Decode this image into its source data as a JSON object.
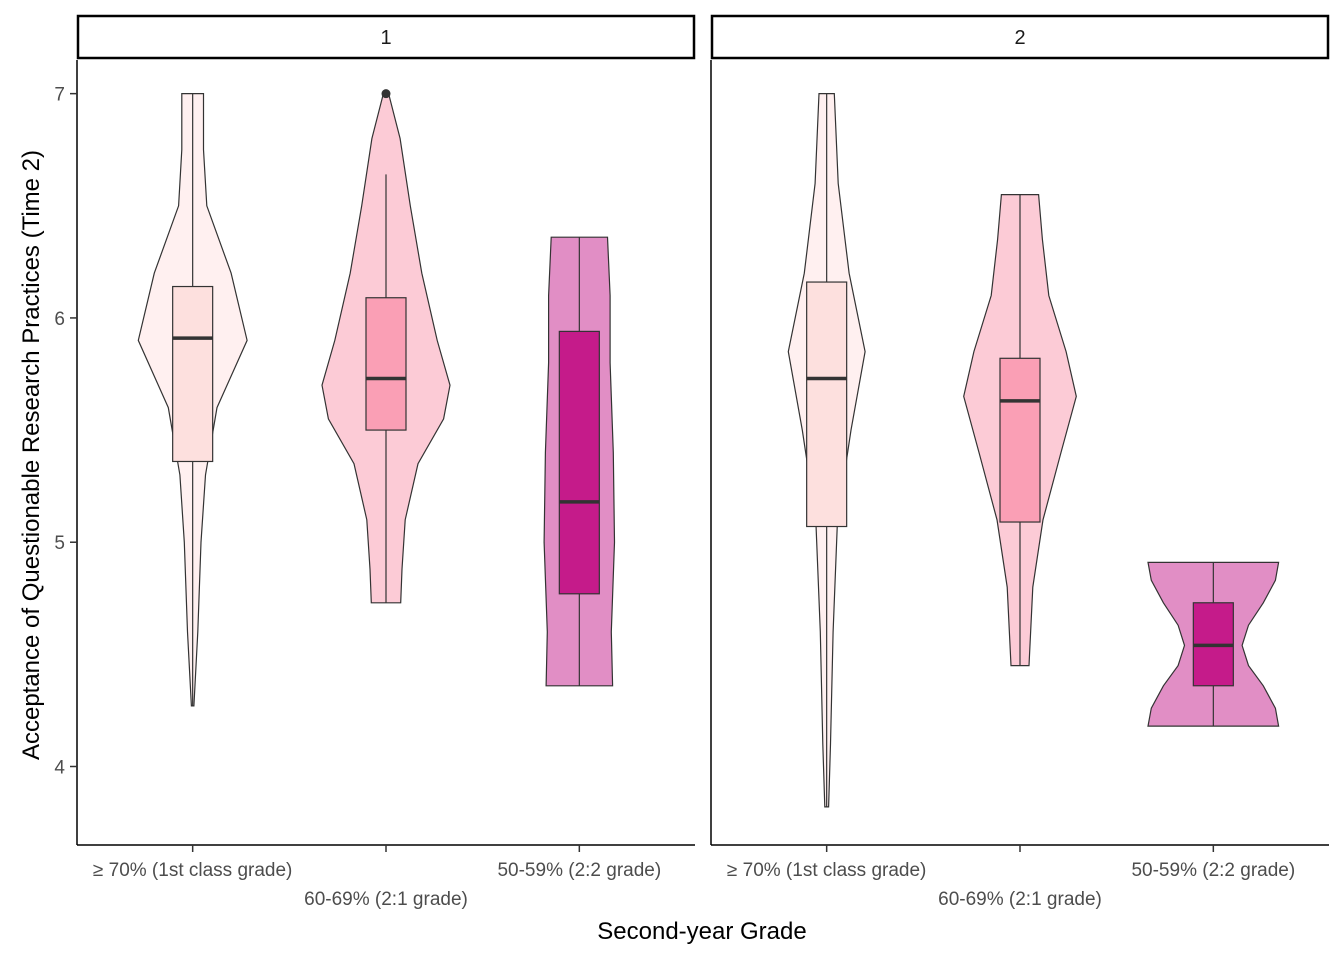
{
  "chart_data": {
    "type": "violin",
    "xlabel": "Second-year Grade",
    "ylabel": "Acceptance of Questionable Research Practices (Time 2)",
    "ylim": [
      3.65,
      7.15
    ],
    "y_ticks": [
      "4",
      "5",
      "6",
      "7"
    ],
    "categories": [
      "≥ 70% (1st class grade)",
      "60-69% (2:1 grade)",
      "50-59% (2:2 grade)"
    ],
    "category_colors": {
      "violin": [
        "#fff0f0",
        "#fccbd6",
        "#e18ec5"
      ],
      "box": [
        "#fde0de",
        "#fa9fb5",
        "#c51b8a"
      ]
    },
    "grid": false,
    "legend": "none",
    "panels": [
      {
        "label": "1",
        "groups": [
          {
            "category": "≥ 70% (1st class grade)",
            "box": {
              "lower_whisker": 4.27,
              "q1": 5.36,
              "median": 5.91,
              "q3": 6.14,
              "upper_whisker": 7.0
            },
            "outliers": [],
            "violin_profile": [
              [
                4.27,
                0.02
              ],
              [
                4.6,
                0.08
              ],
              [
                5.0,
                0.13
              ],
              [
                5.3,
                0.2
              ],
              [
                5.6,
                0.38
              ],
              [
                5.9,
                0.85
              ],
              [
                6.2,
                0.6
              ],
              [
                6.5,
                0.22
              ],
              [
                6.75,
                0.17
              ],
              [
                7.0,
                0.17
              ]
            ]
          },
          {
            "category": "60-69% (2:1 grade)",
            "box": {
              "lower_whisker": 4.73,
              "q1": 5.5,
              "median": 5.73,
              "q3": 6.09,
              "upper_whisker": 6.64
            },
            "outliers": [
              7.0
            ],
            "violin_profile": [
              [
                4.73,
                0.23
              ],
              [
                4.88,
                0.25
              ],
              [
                5.1,
                0.3
              ],
              [
                5.35,
                0.5
              ],
              [
                5.55,
                0.9
              ],
              [
                5.7,
                1.0
              ],
              [
                5.9,
                0.8
              ],
              [
                6.2,
                0.56
              ],
              [
                6.5,
                0.38
              ],
              [
                6.8,
                0.22
              ],
              [
                7.0,
                0.04
              ]
            ]
          },
          {
            "category": "50-59% (2:2 grade)",
            "box": {
              "lower_whisker": 4.36,
              "q1": 4.77,
              "median": 5.18,
              "q3": 5.94,
              "upper_whisker": 6.36
            },
            "outliers": [],
            "violin_profile": [
              [
                4.36,
                0.52
              ],
              [
                4.6,
                0.5
              ],
              [
                5.0,
                0.55
              ],
              [
                5.4,
                0.53
              ],
              [
                5.8,
                0.48
              ],
              [
                6.1,
                0.48
              ],
              [
                6.36,
                0.44
              ]
            ]
          }
        ]
      },
      {
        "label": "2",
        "groups": [
          {
            "category": "≥ 70% (1st class grade)",
            "box": {
              "lower_whisker": 3.82,
              "q1": 5.07,
              "median": 5.73,
              "q3": 6.16,
              "upper_whisker": 7.0
            },
            "outliers": [],
            "violin_profile": [
              [
                3.82,
                0.03
              ],
              [
                4.1,
                0.06
              ],
              [
                4.6,
                0.1
              ],
              [
                5.1,
                0.17
              ],
              [
                5.5,
                0.38
              ],
              [
                5.85,
                0.6
              ],
              [
                6.2,
                0.35
              ],
              [
                6.6,
                0.18
              ],
              [
                7.0,
                0.12
              ]
            ]
          },
          {
            "category": "60-69% (2:1 grade)",
            "box": {
              "lower_whisker": 4.45,
              "q1": 5.09,
              "median": 5.63,
              "q3": 5.82,
              "upper_whisker": 6.55
            },
            "outliers": [],
            "violin_profile": [
              [
                4.45,
                0.14
              ],
              [
                4.8,
                0.2
              ],
              [
                5.1,
                0.36
              ],
              [
                5.4,
                0.64
              ],
              [
                5.65,
                0.88
              ],
              [
                5.85,
                0.72
              ],
              [
                6.1,
                0.45
              ],
              [
                6.35,
                0.35
              ],
              [
                6.55,
                0.29
              ]
            ]
          },
          {
            "category": "50-59% (2:2 grade)",
            "box": {
              "lower_whisker": 4.18,
              "q1": 4.36,
              "median": 4.54,
              "q3": 4.73,
              "upper_whisker": 4.91
            },
            "outliers": [],
            "violin_profile": [
              [
                4.18,
                1.02
              ],
              [
                4.26,
                0.97
              ],
              [
                4.36,
                0.78
              ],
              [
                4.45,
                0.55
              ],
              [
                4.54,
                0.45
              ],
              [
                4.63,
                0.55
              ],
              [
                4.73,
                0.78
              ],
              [
                4.83,
                0.97
              ],
              [
                4.91,
                1.02
              ]
            ]
          }
        ]
      }
    ]
  }
}
